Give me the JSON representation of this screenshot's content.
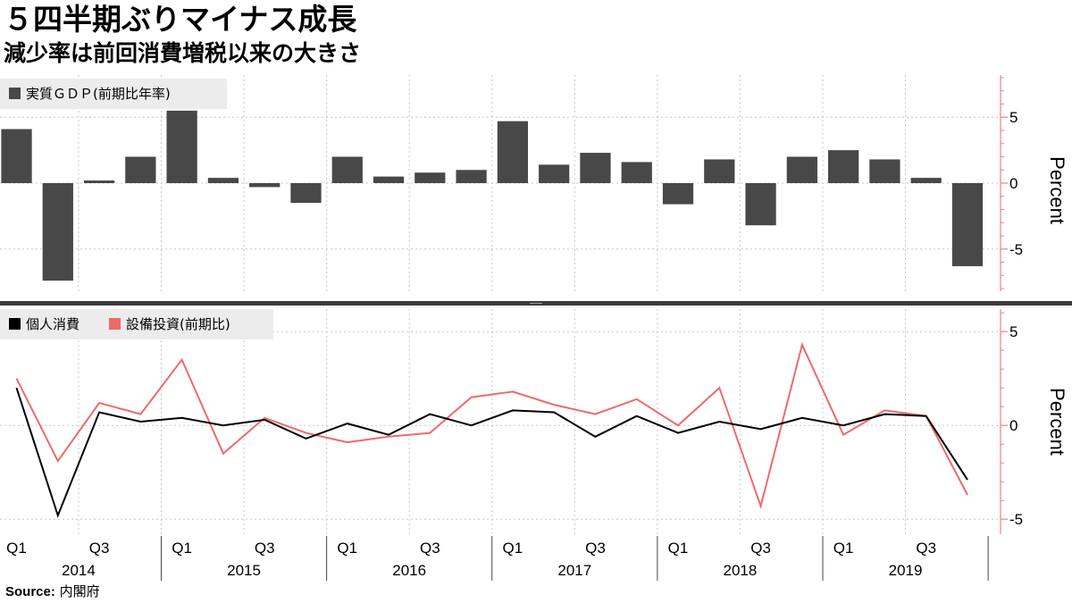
{
  "header": {
    "title": "５四半期ぶりマイナス成長",
    "subtitle": "減少率は前回消費増税以来の大きさ"
  },
  "source": {
    "label": "Source:",
    "value": "内閣府"
  },
  "colors": {
    "bar": "#484848",
    "consumption": "#000000",
    "investment": "#ee6a6a",
    "axis": "#f08080",
    "grid": "#c8c8c8",
    "legend_bg": "#ececec"
  },
  "chart_data": [
    {
      "type": "bar",
      "legend": "実質ＧＤＰ(前期比年率)",
      "unit_label": "Percent",
      "ylim": [
        -8.2,
        8.2
      ],
      "yticks": [
        5,
        0,
        -5
      ],
      "ytick_labels": [
        "5",
        "0",
        "-5"
      ],
      "grid": true,
      "legend_position": "top-left",
      "categories": [
        "2014Q1",
        "2014Q2",
        "2014Q3",
        "2014Q4",
        "2015Q1",
        "2015Q2",
        "2015Q3",
        "2015Q4",
        "2016Q1",
        "2016Q2",
        "2016Q3",
        "2016Q4",
        "2017Q1",
        "2017Q2",
        "2017Q3",
        "2017Q4",
        "2018Q1",
        "2018Q2",
        "2018Q3",
        "2018Q4",
        "2019Q1",
        "2019Q2",
        "2019Q3",
        "2019Q4"
      ],
      "series": [
        {
          "values": [
            4.1,
            -7.4,
            0.2,
            2.0,
            5.5,
            0.4,
            -0.3,
            -1.5,
            2.0,
            0.5,
            0.8,
            1.0,
            4.7,
            1.4,
            2.3,
            1.6,
            -1.6,
            1.8,
            -3.2,
            2.0,
            2.5,
            1.8,
            0.4,
            -6.3
          ]
        }
      ]
    },
    {
      "type": "line",
      "unit_label": "Percent",
      "ylim": [
        -5.8,
        6.2
      ],
      "yticks": [
        5,
        0,
        -5
      ],
      "ytick_labels": [
        "5",
        "0",
        "-5"
      ],
      "grid": true,
      "legend_position": "top-left",
      "x": [
        "2014Q1",
        "2014Q2",
        "2014Q3",
        "2014Q4",
        "2015Q1",
        "2015Q2",
        "2015Q3",
        "2015Q4",
        "2016Q1",
        "2016Q2",
        "2016Q3",
        "2016Q4",
        "2017Q1",
        "2017Q2",
        "2017Q3",
        "2017Q4",
        "2018Q1",
        "2018Q2",
        "2018Q3",
        "2018Q4",
        "2019Q1",
        "2019Q2",
        "2019Q3",
        "2019Q4"
      ],
      "series": [
        {
          "name": "個人消費",
          "values": [
            2.0,
            -4.8,
            0.7,
            0.2,
            0.4,
            0.0,
            0.3,
            -0.7,
            0.1,
            -0.5,
            0.6,
            0.0,
            0.8,
            0.7,
            -0.6,
            0.5,
            -0.4,
            0.2,
            -0.2,
            0.4,
            0.0,
            0.6,
            0.5,
            -2.9
          ]
        },
        {
          "name": "設備投資(前期比)",
          "values": [
            2.5,
            -1.9,
            1.2,
            0.6,
            3.5,
            -1.5,
            0.4,
            -0.4,
            -0.9,
            -0.6,
            -0.4,
            1.5,
            1.8,
            1.1,
            0.6,
            1.4,
            0.0,
            2.0,
            -4.3,
            4.3,
            -0.5,
            0.8,
            0.5,
            -3.7
          ]
        }
      ]
    }
  ],
  "x_axis": {
    "quarter_labels": [
      "Q1",
      "Q3",
      "Q1",
      "Q3",
      "Q1",
      "Q3",
      "Q1",
      "Q3",
      "Q1",
      "Q3",
      "Q1",
      "Q3"
    ],
    "year_labels": [
      "2014",
      "2015",
      "2016",
      "2017",
      "2018",
      "2019"
    ]
  }
}
